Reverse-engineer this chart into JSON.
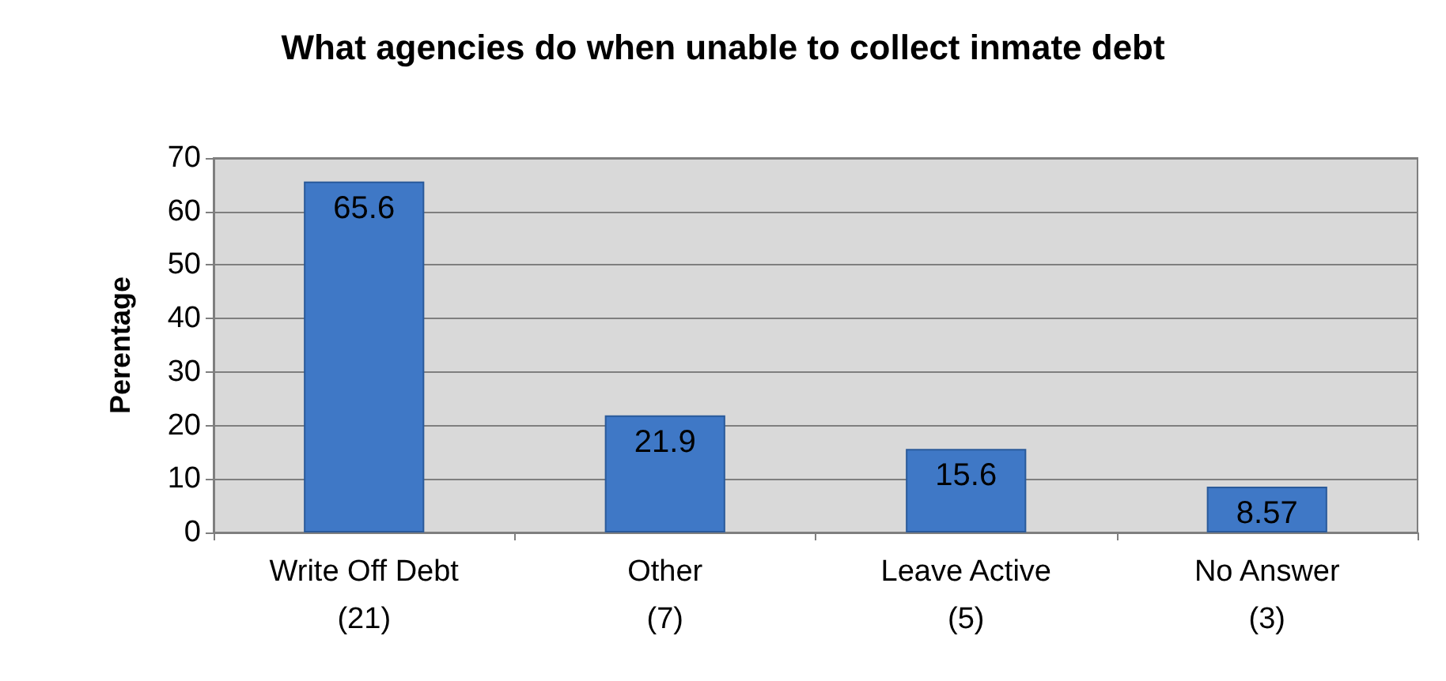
{
  "chart_data": {
    "type": "bar",
    "title": "What agencies do when unable to collect inmate debt",
    "ylabel": "Perentage",
    "categories": [
      "Write Off Debt\n(21)",
      "Other\n(7)",
      "Leave Active\n(5)",
      "No Answer\n(3)"
    ],
    "values": [
      65.6,
      21.9,
      15.6,
      8.57
    ],
    "color": "#3f78c6",
    "ylim": [
      0,
      70
    ],
    "yticks": [
      0,
      10,
      20,
      30,
      40,
      50,
      60,
      70
    ],
    "grid": "y",
    "data_labels": true
  }
}
